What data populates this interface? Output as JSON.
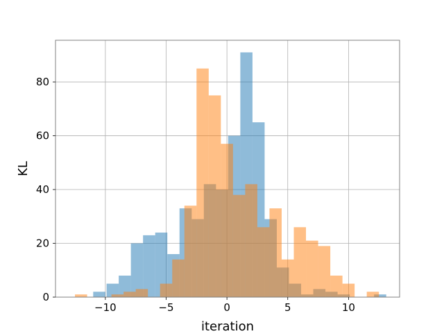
{
  "chart_data": {
    "type": "bar",
    "xlabel": "iteration",
    "ylabel": "KL",
    "xlim": [
      -14.1,
      14.2
    ],
    "ylim": [
      0,
      95.5
    ],
    "grid": true,
    "x_ticks": [
      -10,
      -5,
      0,
      5,
      10
    ],
    "y_ticks": [
      0,
      20,
      40,
      60,
      80
    ],
    "colors": {
      "series_a": "#1f77b4",
      "series_b": "#ff7f0e"
    },
    "opacity": 0.5,
    "series": [
      {
        "bins": [
          {
            "x0": -11.0,
            "x1": -10.0,
            "count": 2
          },
          {
            "x0": -9.9,
            "x1": -8.9,
            "count": 5
          },
          {
            "x0": -8.9,
            "x1": -7.9,
            "count": 8
          },
          {
            "x0": -7.9,
            "x1": -6.9,
            "count": 20
          },
          {
            "x0": -6.9,
            "x1": -5.9,
            "count": 23
          },
          {
            "x0": -5.9,
            "x1": -4.9,
            "count": 24
          },
          {
            "x0": -4.9,
            "x1": -3.9,
            "count": 16
          },
          {
            "x0": -3.9,
            "x1": -2.9,
            "count": 33
          },
          {
            "x0": -2.9,
            "x1": -1.9,
            "count": 29
          },
          {
            "x0": -1.9,
            "x1": -0.9,
            "count": 42
          },
          {
            "x0": -0.9,
            "x1": 0.1,
            "count": 40
          },
          {
            "x0": 0.1,
            "x1": 1.1,
            "count": 60
          },
          {
            "x0": 1.1,
            "x1": 2.1,
            "count": 91
          },
          {
            "x0": 2.1,
            "x1": 3.1,
            "count": 65
          },
          {
            "x0": 3.1,
            "x1": 4.1,
            "count": 29
          },
          {
            "x0": 4.1,
            "x1": 5.1,
            "count": 11
          },
          {
            "x0": 5.1,
            "x1": 6.1,
            "count": 5
          },
          {
            "x0": 6.1,
            "x1": 7.1,
            "count": 1
          },
          {
            "x0": 7.1,
            "x1": 8.1,
            "count": 3
          },
          {
            "x0": 8.1,
            "x1": 9.1,
            "count": 2
          },
          {
            "x0": 9.1,
            "x1": 10.1,
            "count": 1
          },
          {
            "x0": 12.1,
            "x1": 13.1,
            "count": 1
          }
        ]
      },
      {
        "bins": [
          {
            "x0": -12.5,
            "x1": -11.5,
            "count": 1
          },
          {
            "x0": -9.5,
            "x1": -8.5,
            "count": 1
          },
          {
            "x0": -8.5,
            "x1": -7.5,
            "count": 2
          },
          {
            "x0": -7.5,
            "x1": -6.5,
            "count": 3
          },
          {
            "x0": -5.5,
            "x1": -4.5,
            "count": 5
          },
          {
            "x0": -4.5,
            "x1": -3.5,
            "count": 14
          },
          {
            "x0": -3.5,
            "x1": -2.5,
            "count": 34
          },
          {
            "x0": -2.5,
            "x1": -1.5,
            "count": 85
          },
          {
            "x0": -1.5,
            "x1": -0.5,
            "count": 75
          },
          {
            "x0": -0.5,
            "x1": 0.5,
            "count": 57
          },
          {
            "x0": 0.5,
            "x1": 1.5,
            "count": 38
          },
          {
            "x0": 1.5,
            "x1": 2.5,
            "count": 42
          },
          {
            "x0": 2.5,
            "x1": 3.5,
            "count": 26
          },
          {
            "x0": 3.5,
            "x1": 4.5,
            "count": 33
          },
          {
            "x0": 4.5,
            "x1": 5.5,
            "count": 14
          },
          {
            "x0": 5.5,
            "x1": 6.5,
            "count": 26
          },
          {
            "x0": 6.5,
            "x1": 7.5,
            "count": 21
          },
          {
            "x0": 7.5,
            "x1": 8.5,
            "count": 19
          },
          {
            "x0": 8.5,
            "x1": 9.5,
            "count": 8
          },
          {
            "x0": 9.5,
            "x1": 10.5,
            "count": 5
          },
          {
            "x0": 11.5,
            "x1": 12.5,
            "count": 2
          }
        ]
      }
    ]
  }
}
